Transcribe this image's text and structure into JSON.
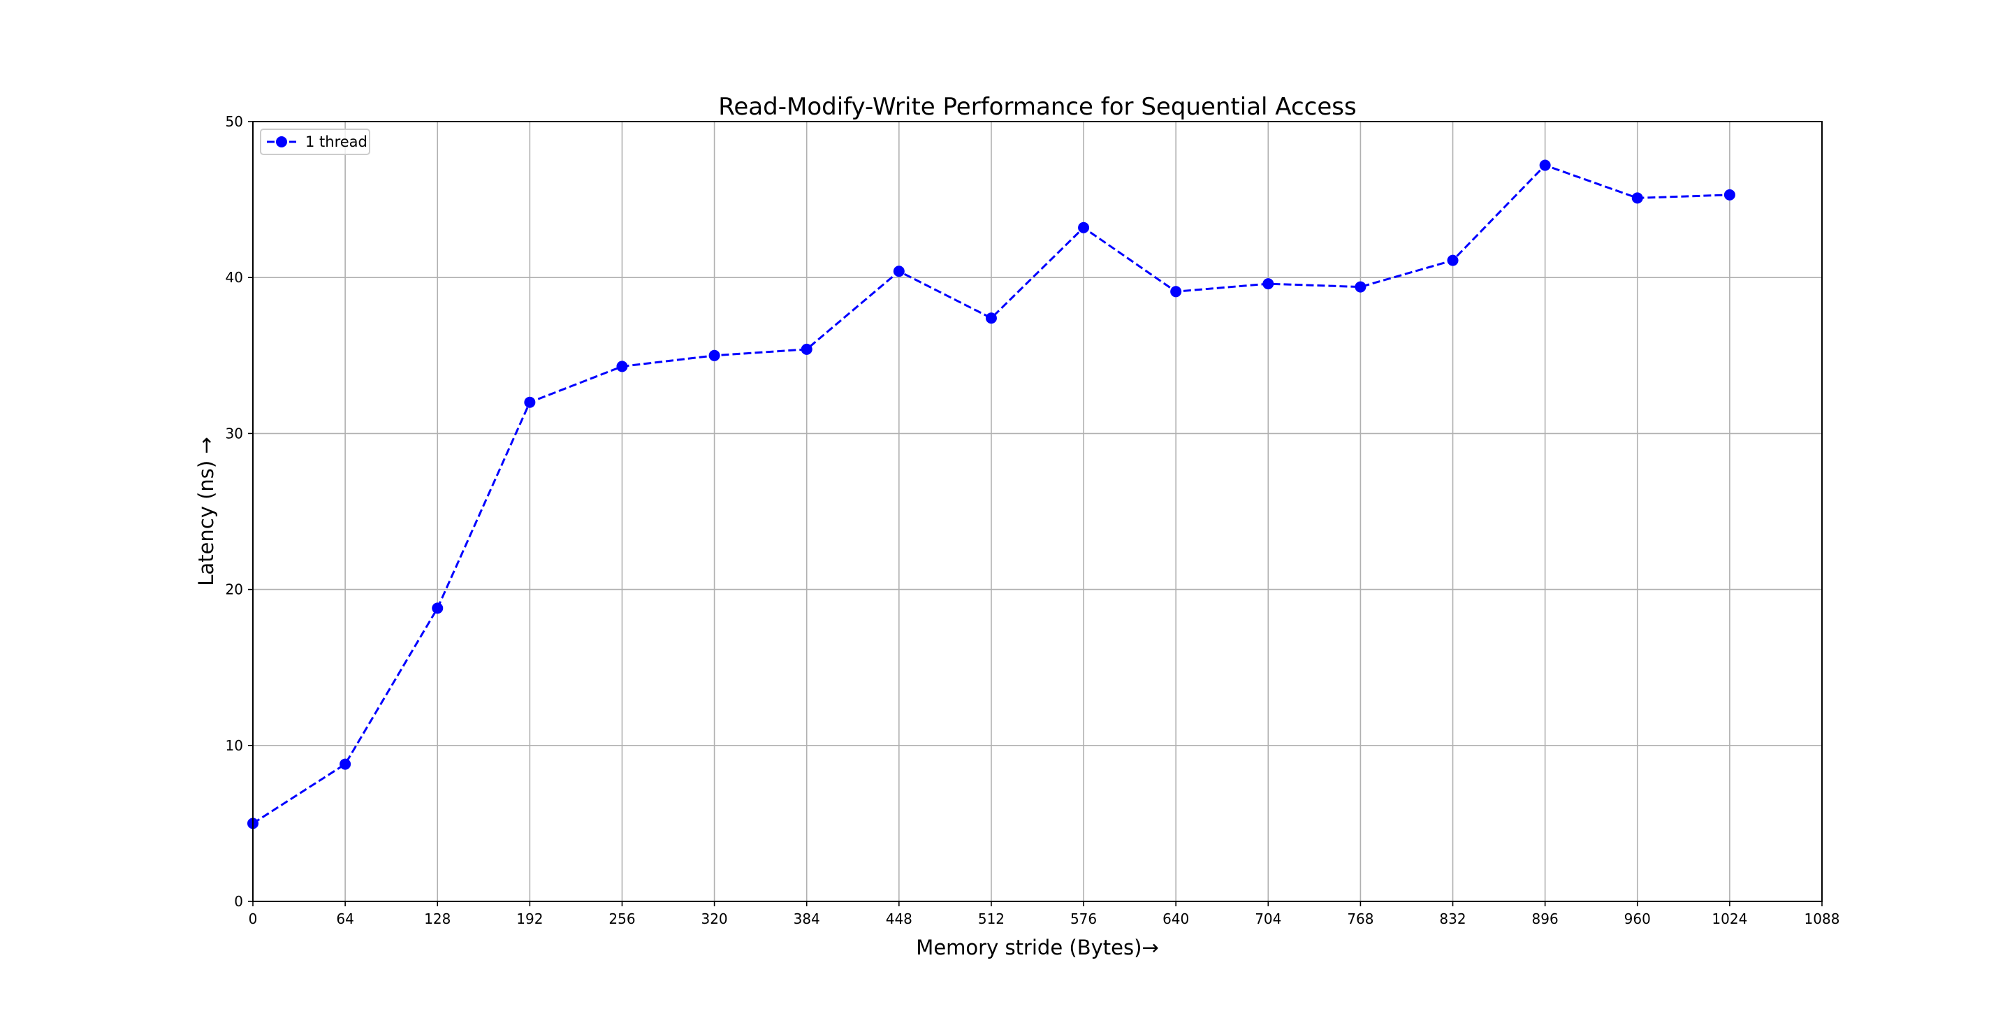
{
  "chart_data": {
    "type": "line",
    "title": "Read-Modify-Write Performance for Sequential Access",
    "xlabel": "Memory stride (Bytes)→",
    "ylabel": "Latency (ns) →",
    "xlim": [
      0,
      1088
    ],
    "ylim": [
      0,
      50
    ],
    "xticks": [
      0,
      64,
      128,
      192,
      256,
      320,
      384,
      448,
      512,
      576,
      640,
      704,
      768,
      832,
      896,
      960,
      1024,
      1088
    ],
    "yticks": [
      0,
      10,
      20,
      30,
      40,
      50
    ],
    "grid": true,
    "legend_position": "upper left",
    "series": [
      {
        "name": "1 thread",
        "color": "#0000ff",
        "line_style": "dashed",
        "marker": "circle",
        "x": [
          0,
          64,
          128,
          192,
          256,
          320,
          384,
          448,
          512,
          576,
          640,
          704,
          768,
          832,
          896,
          960,
          1024
        ],
        "y": [
          5.0,
          8.8,
          18.8,
          32.0,
          34.3,
          35.0,
          35.4,
          40.4,
          37.4,
          43.2,
          39.1,
          39.6,
          39.4,
          41.1,
          47.2,
          45.1,
          45.3
        ]
      }
    ]
  }
}
